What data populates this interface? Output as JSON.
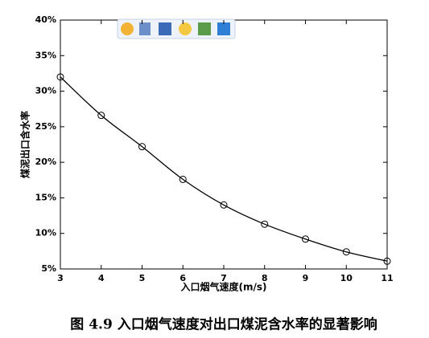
{
  "chart_data": {
    "type": "line",
    "caption": "图 4.9 入口烟气速度对出口煤泥含水率的显著影响",
    "x_label": "入口烟气速度(m/s)",
    "y_label": "煤泥出口含水率",
    "x": [
      3,
      4,
      5,
      6,
      7,
      8,
      9,
      10,
      11
    ],
    "values": [
      32.0,
      26.6,
      22.2,
      17.6,
      14.0,
      11.3,
      9.2,
      7.4,
      6.1
    ],
    "color": "#000000",
    "marker": "circle",
    "xlim": [
      3,
      11
    ],
    "xticks": [
      3,
      4,
      5,
      6,
      7,
      8,
      9,
      10,
      11
    ],
    "ylim": [
      5,
      40
    ],
    "yticks": [
      {
        "value": 5,
        "label": "5%"
      },
      {
        "value": 10,
        "label": "10%"
      },
      {
        "value": 15,
        "label": "15%"
      },
      {
        "value": 20,
        "label": "20%"
      },
      {
        "value": 25,
        "label": "25%"
      },
      {
        "value": 30,
        "label": "30%"
      },
      {
        "value": 35,
        "label": "35%"
      },
      {
        "value": 40,
        "label": "40%"
      }
    ]
  }
}
